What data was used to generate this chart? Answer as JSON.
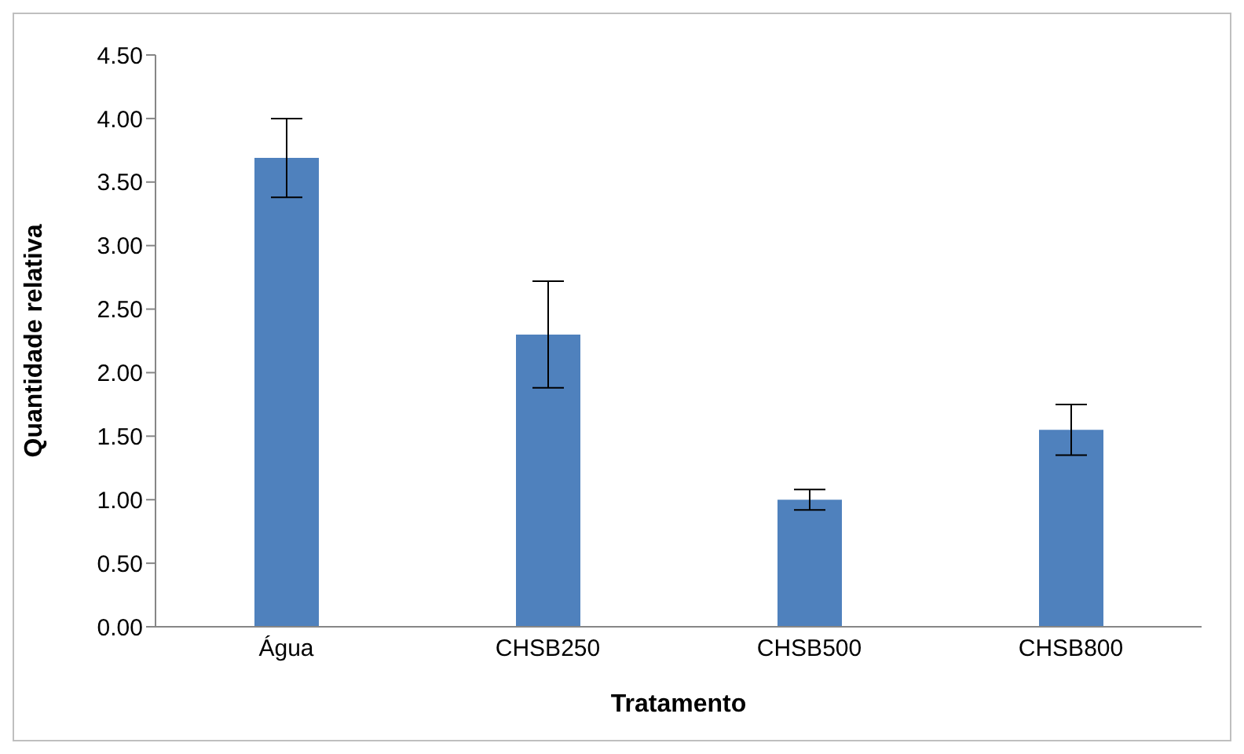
{
  "chart_data": {
    "type": "bar",
    "xlabel": "Tratamento",
    "ylabel": "Quantidade relativa",
    "categories": [
      "Água",
      "CHSB250",
      "CHSB500",
      "CHSB800"
    ],
    "values": [
      3.69,
      2.3,
      1.0,
      1.55
    ],
    "errors": [
      0.31,
      0.42,
      0.08,
      0.2
    ],
    "color": "#4f81bd",
    "ylim": [
      0,
      4.5
    ],
    "yticks": [
      {
        "value": 0,
        "label": "0.00"
      },
      {
        "value": 0.5,
        "label": "0.50"
      },
      {
        "value": 1,
        "label": "1.00"
      },
      {
        "value": 1.5,
        "label": "1.50"
      },
      {
        "value": 2,
        "label": "2.00"
      },
      {
        "value": 2.5,
        "label": "2.50"
      },
      {
        "value": 3,
        "label": "3.00"
      },
      {
        "value": 3.5,
        "label": "3.50"
      },
      {
        "value": 4,
        "label": "4.00"
      },
      {
        "value": 4.5,
        "label": "4.50"
      }
    ],
    "grid": false,
    "legend": false
  }
}
